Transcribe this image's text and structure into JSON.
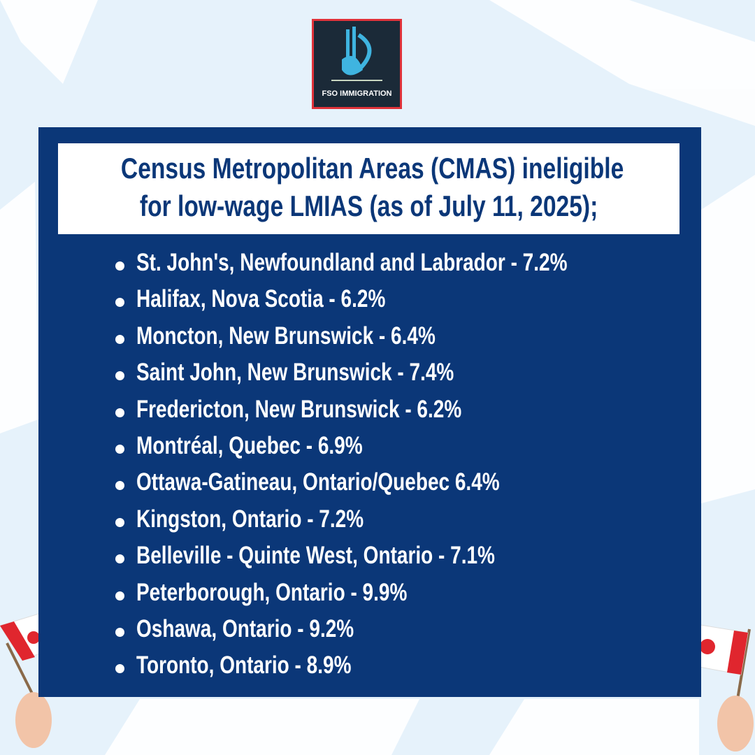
{
  "logo": {
    "text": "FSO IMMIGRATION"
  },
  "header": {
    "title_lines": [
      "Census Metropolitan Areas (CMAS) ineligible",
      "for low-wage LMIAS (as of July 11, 2025);"
    ]
  },
  "list": {
    "items": [
      "St. John's, Newfoundland and Labrador - 7.2%",
      "Halifax, Nova Scotia - 6.2%",
      "Moncton, New Brunswick - 6.4%",
      "Saint John, New Brunswick - 7.4%",
      "Fredericton, New Brunswick - 6.2%",
      "Montréal, Quebec - 6.9%",
      "Ottawa-Gatineau, Ontario/Quebec 6.4%",
      "Kingston, Ontario - 7.2%",
      "Belleville - Quinte West, Ontario - 7.1%",
      "Peterborough, Ontario - 9.9%",
      "Oshawa, Ontario - 9.2%",
      "Toronto, Ontario - 8.9%"
    ]
  }
}
